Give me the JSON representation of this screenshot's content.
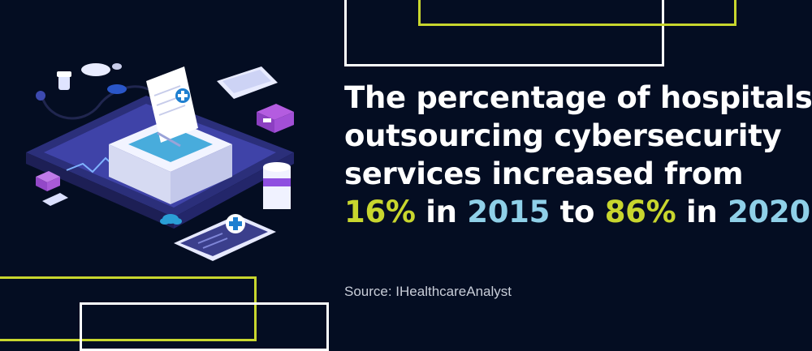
{
  "headline": {
    "line1": "The percentage of hospitals",
    "line2": "outsourcing cybersecurity",
    "line3": "services increased from",
    "pct_2015": "16%",
    "in_1": " in ",
    "year_1": "2015",
    "to": " to ",
    "pct_2020": "86%",
    "in_2": " in ",
    "year_2": "2020",
    "period": "."
  },
  "source": "Source: IHealthcareAnalyst",
  "colors": {
    "background": "#040d22",
    "lime_accent": "#c8d62e",
    "blue_accent": "#8fd0e8",
    "text": "#ffffff"
  },
  "illustration": {
    "icons": [
      "medical-cross-icon",
      "pill-bottle-icon",
      "stethoscope-icon",
      "medical-document-icon",
      "smartphone-icon",
      "cloud-icon",
      "laptop-platform-icon"
    ]
  }
}
